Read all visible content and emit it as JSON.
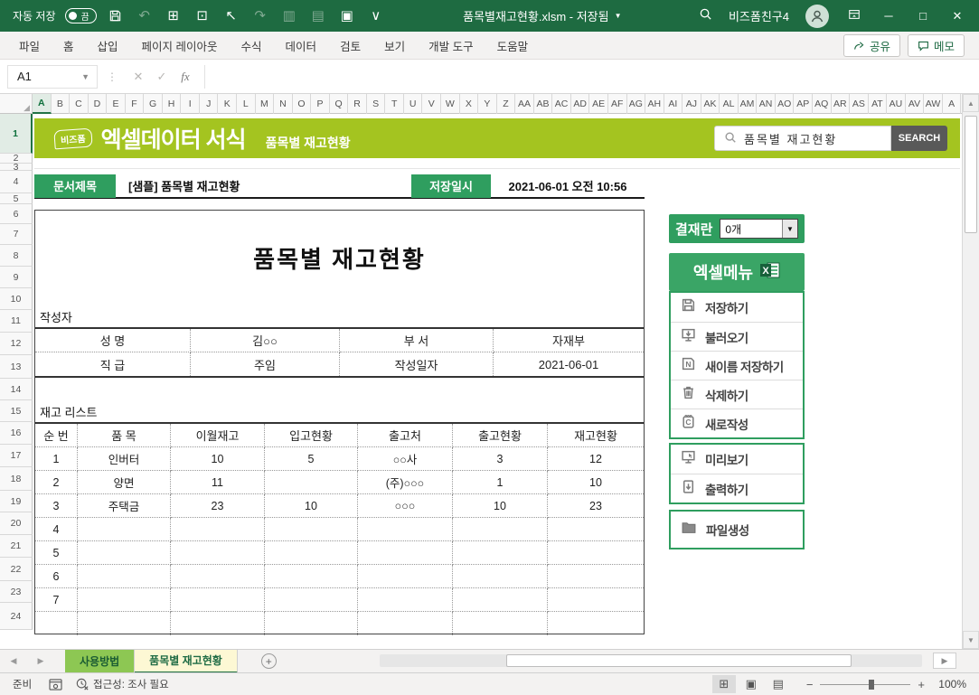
{
  "colors": {
    "c_title": "#1e6b41",
    "c_banner": "#a4c420",
    "c_green": "#2f9e5f",
    "c_searchbtn": "#595959",
    "c_tabactive": "#fdf8d4"
  },
  "titlebar": {
    "autosave_label": "자동 저장",
    "autosave_state": "끔",
    "filename": "품목별재고현황.xlsm - 저장됨",
    "user": "비즈폼친구4"
  },
  "ribbon": {
    "tabs": [
      "파일",
      "홈",
      "삽입",
      "페이지 레이아웃",
      "수식",
      "데이터",
      "검토",
      "보기",
      "개발 도구",
      "도움말"
    ],
    "share_label": "공유",
    "memo_label": "메모"
  },
  "formula_bar": {
    "name_box": "A1",
    "fx_label": "fx",
    "formula_value": ""
  },
  "grid": {
    "columns": [
      "A",
      "B",
      "C",
      "D",
      "E",
      "F",
      "G",
      "H",
      "I",
      "J",
      "K",
      "L",
      "M",
      "N",
      "O",
      "P",
      "Q",
      "R",
      "S",
      "T",
      "U",
      "V",
      "W",
      "X",
      "Y",
      "Z",
      "AA",
      "AB",
      "AC",
      "AD",
      "AE",
      "AF",
      "AG",
      "AH",
      "AI",
      "AJ",
      "AK",
      "AL",
      "AM",
      "AN",
      "AO",
      "AP",
      "AQ",
      "AR",
      "AS",
      "AT",
      "AU",
      "AV",
      "AW",
      "A"
    ],
    "rows": [
      "1",
      "2",
      "3",
      "4",
      "5",
      "6",
      "7",
      "8",
      "9",
      "10",
      "11",
      "12",
      "13",
      "14",
      "15",
      "16",
      "17",
      "18",
      "19",
      "20",
      "21",
      "22",
      "23",
      "24"
    ]
  },
  "banner": {
    "logo": "비즈폼",
    "title": "엑셀데이터 서식",
    "subtitle": "품목별 재고현황",
    "search_value": "품목별 재고현황",
    "search_button": "SEARCH"
  },
  "doc_header": {
    "doc_title_label": "문서제목",
    "doc_title_value": "[샘플] 품목별 재고현황",
    "saved_at_label": "저장일시",
    "saved_at_value": "2021-06-01  오전 10:56"
  },
  "document": {
    "title": "품목별 재고현황",
    "author_section_label": "작성자",
    "author_rows": [
      [
        "성  명",
        "김○○",
        "부  서",
        "자재부"
      ],
      [
        "직  급",
        "주임",
        "작성일자",
        "2021-06-01"
      ]
    ],
    "list_label": "재고 리스트",
    "table": {
      "headers": [
        "순  번",
        "품  목",
        "이월재고",
        "입고현황",
        "출고처",
        "출고현황",
        "재고현황"
      ],
      "rows": [
        [
          "1",
          "인버터",
          "10",
          "5",
          "○○사",
          "3",
          "12"
        ],
        [
          "2",
          "양면",
          "11",
          "",
          "(주)○○○",
          "1",
          "10"
        ],
        [
          "3",
          "주택금",
          "23",
          "10",
          "○○○",
          "10",
          "23"
        ],
        [
          "4",
          "",
          "",
          "",
          "",
          "",
          ""
        ],
        [
          "5",
          "",
          "",
          "",
          "",
          "",
          ""
        ],
        [
          "6",
          "",
          "",
          "",
          "",
          "",
          ""
        ],
        [
          "7",
          "",
          "",
          "",
          "",
          "",
          ""
        ],
        [
          "",
          "",
          "",
          "",
          "",
          "",
          ""
        ]
      ]
    }
  },
  "sidebar": {
    "approval_label": "결재란",
    "approval_value": "0개",
    "menu_title": "엑셀메뉴",
    "groups": [
      {
        "items": [
          {
            "icon": "save-icon",
            "label": "저장하기"
          },
          {
            "icon": "load-icon",
            "label": "불러오기"
          },
          {
            "icon": "save-as-icon",
            "label": "새이름 저장하기"
          },
          {
            "icon": "delete-icon",
            "label": "삭제하기"
          },
          {
            "icon": "new-icon",
            "label": "새로작성"
          }
        ]
      },
      {
        "items": [
          {
            "icon": "preview-icon",
            "label": "미리보기"
          },
          {
            "icon": "print-icon",
            "label": "출력하기"
          }
        ]
      },
      {
        "items": [
          {
            "icon": "file-icon",
            "label": "파일생성"
          }
        ]
      }
    ]
  },
  "sheet_tabs": {
    "tabs": [
      {
        "label": "사용방법",
        "active": false
      },
      {
        "label": "품목별 재고현황",
        "active": true
      }
    ]
  },
  "status_bar": {
    "ready": "준비",
    "accessibility": "접근성: 조사 필요",
    "zoom": "100%"
  }
}
